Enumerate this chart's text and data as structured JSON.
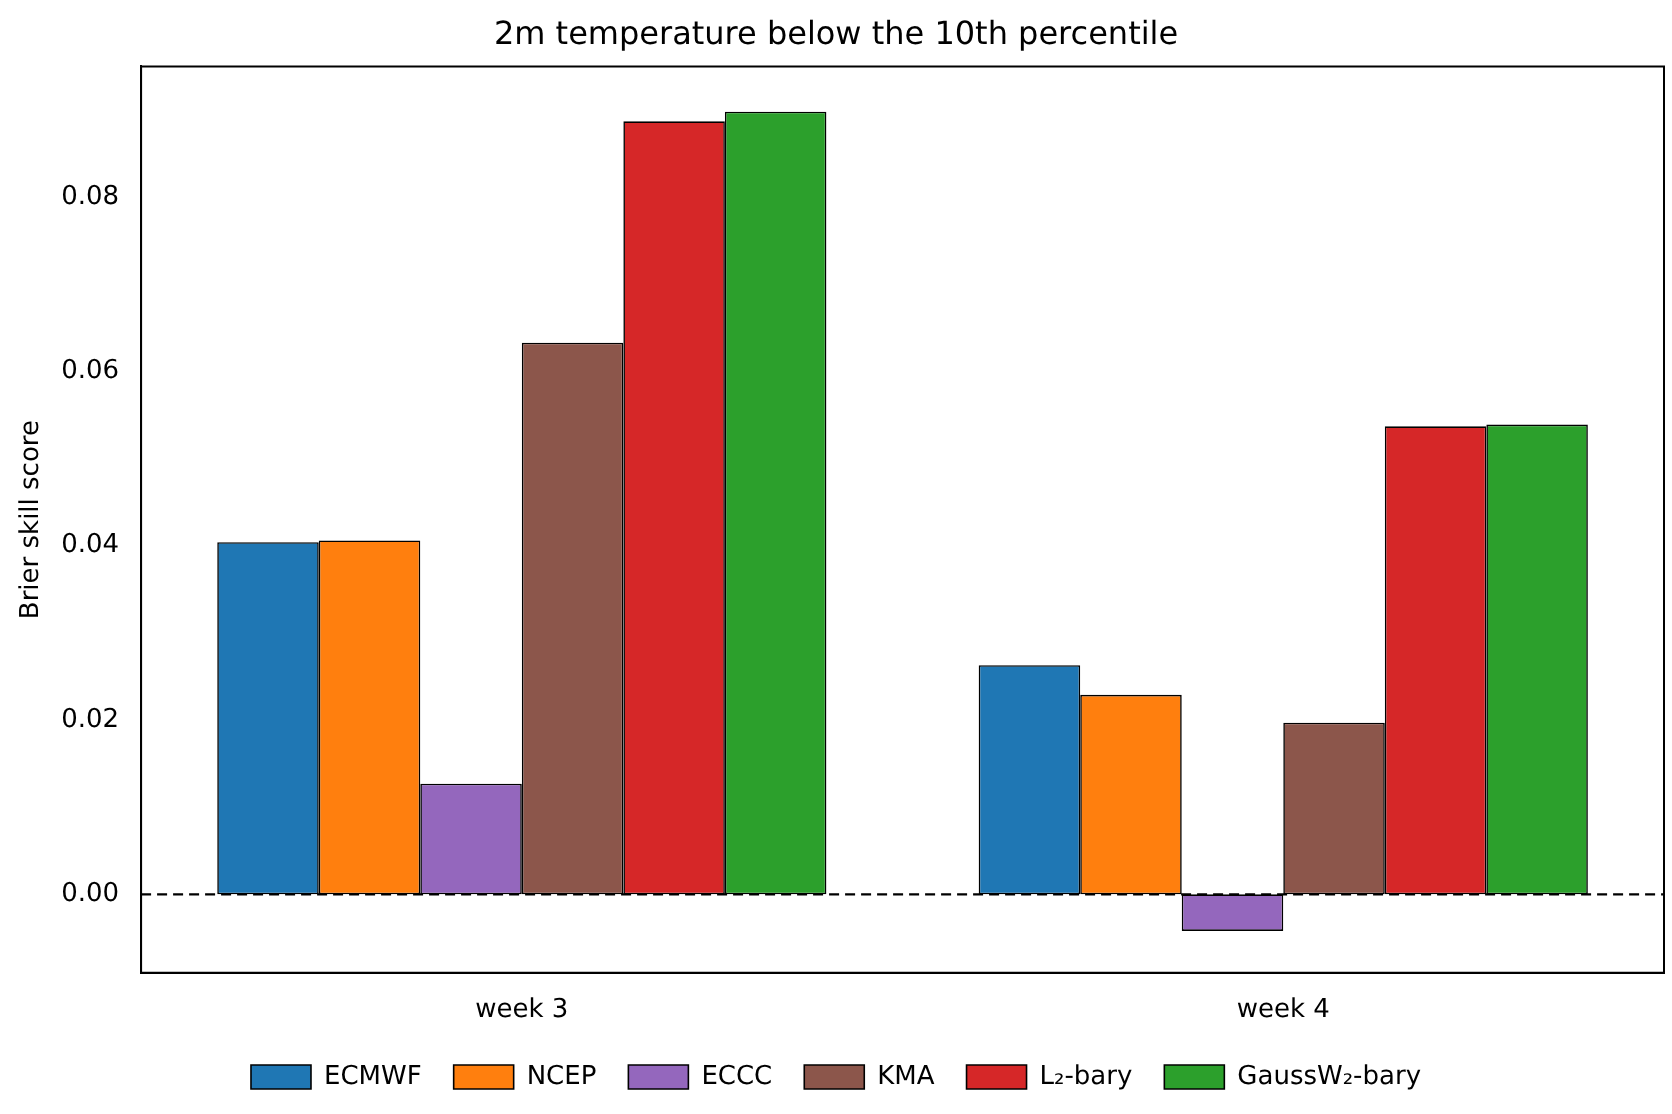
{
  "chart_data": {
    "type": "bar",
    "title": "2m temperature below the 10th percentile",
    "ylabel": "Brier skill score",
    "categories": [
      "week 3",
      "week 4"
    ],
    "series": [
      {
        "name": "ECMWF",
        "color": "#1f77b4",
        "values": [
          0.0404,
          0.0263
        ]
      },
      {
        "name": "NCEP",
        "color": "#ff7f0e",
        "values": [
          0.0406,
          0.0229
        ]
      },
      {
        "name": "ECCC",
        "color": "#9467bd",
        "values": [
          0.0127,
          -0.0042
        ]
      },
      {
        "name": "KMA",
        "color": "#8c564b",
        "values": [
          0.0633,
          0.0197
        ]
      },
      {
        "name": "L₂-bary",
        "color": "#d62728",
        "values": [
          0.0887,
          0.0537
        ]
      },
      {
        "name": "GaussW₂-bary",
        "color": "#2ca02c",
        "values": [
          0.0898,
          0.0539
        ]
      }
    ],
    "ylim": [
      -0.009,
      0.095
    ],
    "yticks": [
      {
        "value": 0,
        "label": "0.00"
      },
      {
        "value": 0.02,
        "label": "0.02"
      },
      {
        "value": 0.04,
        "label": "0.04"
      },
      {
        "value": 0.06,
        "label": "0.06"
      },
      {
        "value": 0.08,
        "label": "0.08"
      }
    ],
    "ref_lines": [
      {
        "axis": "y",
        "value": 0,
        "color": "#000000",
        "line_style": "dashed"
      }
    ],
    "grid": false,
    "legend": "bottom"
  }
}
